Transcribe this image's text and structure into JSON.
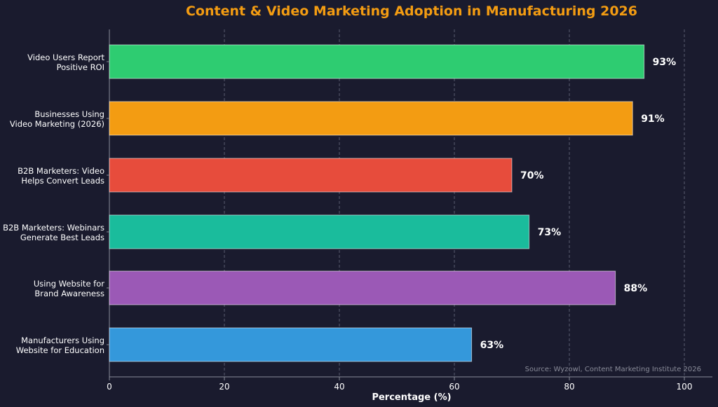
{
  "chart_data": {
    "type": "bar",
    "orientation": "horizontal",
    "title": "Content & Video Marketing Adoption in Manufacturing 2026",
    "xlabel": "Percentage (%)",
    "ylabel": "",
    "xlim": [
      0,
      100
    ],
    "xticks": [
      0,
      20,
      40,
      60,
      80,
      100
    ],
    "grid": "vertical-dashed",
    "source": "Source: Wyzowl, Content Marketing Institute 2026",
    "bars": [
      {
        "label": [
          "Video Users Report",
          "Positive ROI"
        ],
        "value": 93,
        "value_label": "93%",
        "color": "#2ecc71"
      },
      {
        "label": [
          "Businesses Using",
          "Video Marketing (2026)"
        ],
        "value": 91,
        "value_label": "91%",
        "color": "#f39c12"
      },
      {
        "label": [
          "B2B Marketers: Video",
          "Helps Convert Leads"
        ],
        "value": 70,
        "value_label": "70%",
        "color": "#e74c3c"
      },
      {
        "label": [
          "B2B Marketers: Webinars",
          "Generate Best Leads"
        ],
        "value": 73,
        "value_label": "73%",
        "color": "#1abc9c"
      },
      {
        "label": [
          "Using Website for",
          "Brand Awareness"
        ],
        "value": 88,
        "value_label": "88%",
        "color": "#9b59b6"
      },
      {
        "label": [
          "Manufacturers Using",
          "Website for Education"
        ],
        "value": 63,
        "value_label": "63%",
        "color": "#3498db"
      }
    ],
    "colors": {
      "background": "#1a1b2e",
      "title": "#f39c12",
      "text": "#ffffff",
      "axis": "#8a8c99",
      "grid": "#5a5c70",
      "source": "#8a8c99"
    }
  }
}
